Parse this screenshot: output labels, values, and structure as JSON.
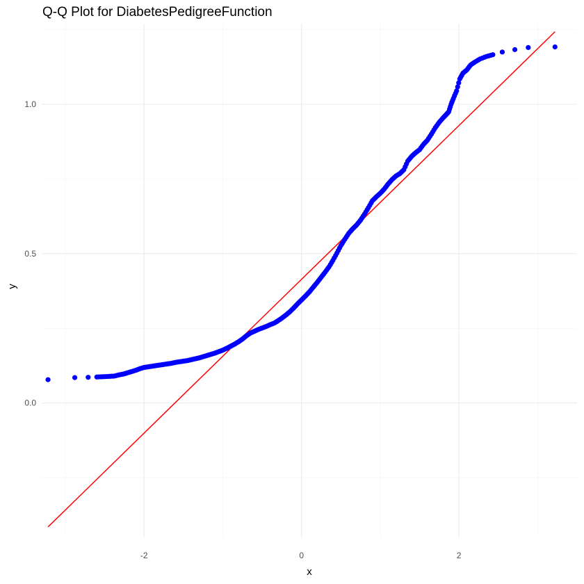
{
  "chart_data": {
    "type": "scatter",
    "title": "Q-Q Plot for DiabetesPedigreeFunction",
    "xlabel": "x",
    "ylabel": "y",
    "xlim": [
      -3.3,
      3.5
    ],
    "ylim": [
      -0.45,
      1.27
    ],
    "x_ticks": [
      -2,
      0,
      2
    ],
    "y_ticks": [
      0.0,
      0.5,
      1.0
    ],
    "x_tick_labels": [
      "-2",
      "0",
      "2"
    ],
    "y_tick_labels": [
      "0.0",
      "0.5",
      "1.0"
    ],
    "grid": true,
    "point_color": "#0000ff",
    "line_color": "#ff0000",
    "reference_line": {
      "x": [
        -3.22,
        3.22
      ],
      "y": [
        -0.415,
        1.243
      ]
    },
    "series": [
      {
        "points": [
          [
            -3.22,
            0.078
          ],
          [
            -2.88,
            0.085
          ],
          [
            -2.71,
            0.086
          ],
          [
            -2.6,
            0.087
          ],
          [
            -2.52,
            0.088
          ],
          [
            -2.45,
            0.089
          ],
          [
            -2.38,
            0.09
          ],
          [
            -2.32,
            0.094
          ],
          [
            -2.26,
            0.097
          ],
          [
            -2.21,
            0.101
          ],
          [
            -2.16,
            0.105
          ],
          [
            -2.1,
            0.11
          ],
          [
            -2.05,
            0.115
          ],
          [
            -2.0,
            0.119
          ],
          [
            -1.95,
            0.121
          ],
          [
            -1.9,
            0.123
          ],
          [
            -1.85,
            0.125
          ],
          [
            -1.8,
            0.127
          ],
          [
            -1.75,
            0.129
          ],
          [
            -1.7,
            0.131
          ],
          [
            -1.65,
            0.133
          ],
          [
            -1.6,
            0.136
          ],
          [
            -1.55,
            0.138
          ],
          [
            -1.5,
            0.14
          ],
          [
            -1.45,
            0.142
          ],
          [
            -1.4,
            0.145
          ],
          [
            -1.35,
            0.148
          ],
          [
            -1.3,
            0.151
          ],
          [
            -1.25,
            0.155
          ],
          [
            -1.2,
            0.159
          ],
          [
            -1.15,
            0.163
          ],
          [
            -1.1,
            0.167
          ],
          [
            -1.05,
            0.172
          ],
          [
            -1.0,
            0.177
          ],
          [
            -0.95,
            0.183
          ],
          [
            -0.9,
            0.19
          ],
          [
            -0.85,
            0.197
          ],
          [
            -0.8,
            0.205
          ],
          [
            -0.75,
            0.214
          ],
          [
            -0.7,
            0.225
          ],
          [
            -0.65,
            0.234
          ],
          [
            -0.6,
            0.24
          ],
          [
            -0.55,
            0.246
          ],
          [
            -0.5,
            0.251
          ],
          [
            -0.45,
            0.256
          ],
          [
            -0.4,
            0.262
          ],
          [
            -0.35,
            0.267
          ],
          [
            -0.3,
            0.275
          ],
          [
            -0.25,
            0.284
          ],
          [
            -0.2,
            0.294
          ],
          [
            -0.15,
            0.305
          ],
          [
            -0.1,
            0.318
          ],
          [
            -0.05,
            0.332
          ],
          [
            0.0,
            0.345
          ],
          [
            0.05,
            0.358
          ],
          [
            0.1,
            0.372
          ],
          [
            0.15,
            0.388
          ],
          [
            0.2,
            0.404
          ],
          [
            0.25,
            0.421
          ],
          [
            0.3,
            0.438
          ],
          [
            0.35,
            0.456
          ],
          [
            0.4,
            0.478
          ],
          [
            0.45,
            0.502
          ],
          [
            0.5,
            0.527
          ],
          [
            0.55,
            0.548
          ],
          [
            0.6,
            0.568
          ],
          [
            0.65,
            0.583
          ],
          [
            0.7,
            0.596
          ],
          [
            0.75,
            0.612
          ],
          [
            0.8,
            0.632
          ],
          [
            0.85,
            0.654
          ],
          [
            0.9,
            0.677
          ],
          [
            0.95,
            0.69
          ],
          [
            1.0,
            0.702
          ],
          [
            1.05,
            0.716
          ],
          [
            1.1,
            0.733
          ],
          [
            1.15,
            0.748
          ],
          [
            1.2,
            0.76
          ],
          [
            1.25,
            0.768
          ],
          [
            1.3,
            0.781
          ],
          [
            1.35,
            0.81
          ],
          [
            1.4,
            0.826
          ],
          [
            1.45,
            0.838
          ],
          [
            1.5,
            0.848
          ],
          [
            1.55,
            0.866
          ],
          [
            1.6,
            0.88
          ],
          [
            1.65,
            0.9
          ],
          [
            1.7,
            0.922
          ],
          [
            1.75,
            0.94
          ],
          [
            1.8,
            0.955
          ],
          [
            1.84,
            0.966
          ],
          [
            1.87,
            0.975
          ],
          [
            1.9,
            1.0
          ],
          [
            1.93,
            1.02
          ],
          [
            1.97,
            1.045
          ],
          [
            2.01,
            1.085
          ],
          [
            2.05,
            1.104
          ],
          [
            2.1,
            1.115
          ],
          [
            2.15,
            1.132
          ],
          [
            2.2,
            1.141
          ],
          [
            2.27,
            1.152
          ],
          [
            2.35,
            1.16
          ],
          [
            2.43,
            1.166
          ],
          [
            2.55,
            1.175
          ],
          [
            2.71,
            1.183
          ],
          [
            2.88,
            1.19
          ],
          [
            3.22,
            1.192
          ]
        ]
      }
    ]
  }
}
